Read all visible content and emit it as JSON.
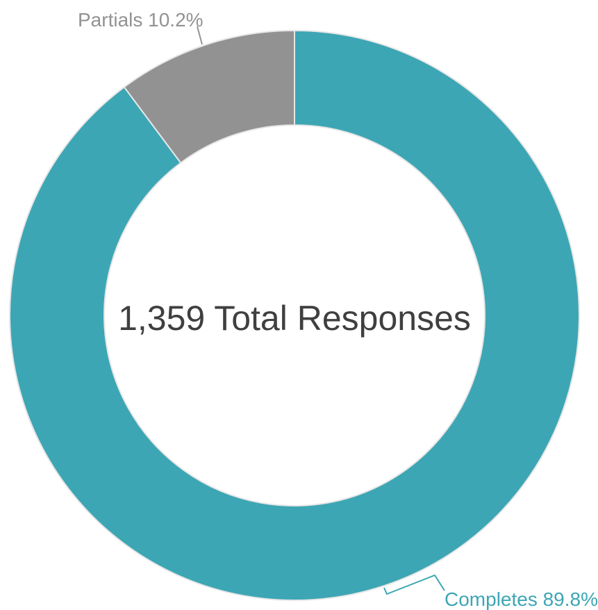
{
  "chart_data": {
    "type": "pie",
    "title": "",
    "center_text": "1,359 Total Responses",
    "slices": [
      {
        "label": "Completes",
        "value": 89.8,
        "display": "Completes 89.8%",
        "color": "#3da6b4"
      },
      {
        "label": "Partials",
        "value": 10.2,
        "display": "Partials 10.2%",
        "color": "#929292"
      }
    ],
    "legend": "none"
  }
}
